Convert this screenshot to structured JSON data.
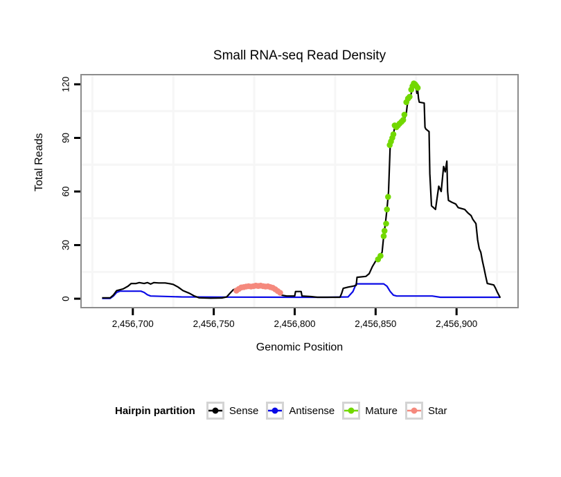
{
  "title": "Small RNA-seq Read Density",
  "legend": {
    "title": "Hairpin partition",
    "entries": [
      {
        "label": "Sense",
        "color": "#000000"
      },
      {
        "label": "Antisense",
        "color": "#0a0ae6"
      },
      {
        "label": "Mature",
        "color": "#72d800"
      },
      {
        "label": "Star",
        "color": "#f5897d"
      }
    ]
  },
  "chart_data": {
    "type": "line",
    "title": "Small RNA-seq Read Density",
    "xlabel": "Genomic Position",
    "ylabel": "Total Reads",
    "x_range": [
      2456668,
      2456938
    ],
    "y_range": [
      -5,
      125.4
    ],
    "x_ticks": [
      2456700,
      2456750,
      2456800,
      2456850,
      2456900
    ],
    "x_tick_labels": [
      "2,456,700",
      "2,456,750",
      "2,456,800",
      "2,456,850",
      "2,456,900"
    ],
    "y_ticks": [
      0,
      30,
      60,
      90,
      120
    ],
    "y_tick_labels": [
      "0",
      "30",
      "60",
      "90",
      "120"
    ],
    "x_minor": [
      2456675,
      2456725,
      2456775,
      2456825,
      2456875,
      2456925
    ],
    "y_minor": [
      15,
      45,
      75,
      105
    ],
    "grid_color": "#f6f6f6",
    "panel_border_color": "#8c8c8c",
    "legend_position": "bottom",
    "series": [
      {
        "name": "Antisense",
        "type": "line",
        "color": "#0a0ae6",
        "points": [
          [
            2456681,
            0.2
          ],
          [
            2456686,
            0.2
          ],
          [
            2456688,
            1.5
          ],
          [
            2456690,
            3.5
          ],
          [
            2456692,
            4.2
          ],
          [
            2456705,
            4.2
          ],
          [
            2456707,
            3.5
          ],
          [
            2456709,
            2.2
          ],
          [
            2456711,
            1.5
          ],
          [
            2456730,
            1
          ],
          [
            2456760,
            0.9
          ],
          [
            2456800,
            0.8
          ],
          [
            2456820,
            0.8
          ],
          [
            2456833,
            1
          ],
          [
            2456834,
            2
          ],
          [
            2456836,
            4
          ],
          [
            2456838,
            8.3
          ],
          [
            2456855,
            8.3
          ],
          [
            2456857,
            7
          ],
          [
            2456859,
            4
          ],
          [
            2456861,
            2
          ],
          [
            2456863,
            1.5
          ],
          [
            2456885,
            1.5
          ],
          [
            2456890,
            0.8
          ],
          [
            2456927,
            0.8
          ]
        ]
      },
      {
        "name": "Sense",
        "type": "line",
        "color": "#000000",
        "points": [
          [
            2456681,
            0.5
          ],
          [
            2456686,
            0.5
          ],
          [
            2456688,
            2
          ],
          [
            2456690,
            4.5
          ],
          [
            2456694,
            5.5
          ],
          [
            2456697,
            7
          ],
          [
            2456699,
            8.5
          ],
          [
            2456702,
            8.5
          ],
          [
            2456704,
            9
          ],
          [
            2456707,
            8.5
          ],
          [
            2456709,
            9
          ],
          [
            2456711,
            8.2
          ],
          [
            2456713,
            9
          ],
          [
            2456716,
            8.8
          ],
          [
            2456720,
            8.8
          ],
          [
            2456723,
            8.4
          ],
          [
            2456725,
            8
          ],
          [
            2456728,
            6.5
          ],
          [
            2456731,
            4.5
          ],
          [
            2456735,
            3
          ],
          [
            2456738,
            1.5
          ],
          [
            2456741,
            0.5
          ],
          [
            2456748,
            0.3
          ],
          [
            2456755,
            0.4
          ],
          [
            2456758,
            1
          ],
          [
            2456760,
            3
          ],
          [
            2456762,
            5
          ],
          [
            2456764,
            5.8
          ],
          [
            2456767,
            6.4
          ],
          [
            2456770,
            6.8
          ],
          [
            2456772,
            6.5
          ],
          [
            2456775,
            6.8
          ],
          [
            2456778,
            7
          ],
          [
            2456781,
            6.7
          ],
          [
            2456784,
            6.3
          ],
          [
            2456786,
            5.5
          ],
          [
            2456789,
            4
          ],
          [
            2456792,
            2
          ],
          [
            2456795,
            1.5
          ],
          [
            2456800,
            1.5
          ],
          [
            2456800.5,
            4
          ],
          [
            2456804,
            4
          ],
          [
            2456804.5,
            1.5
          ],
          [
            2456810,
            1.2
          ],
          [
            2456814,
            0.8
          ],
          [
            2456828,
            0.8
          ],
          [
            2456829,
            3
          ],
          [
            2456830,
            5.8
          ],
          [
            2456833,
            6.5
          ],
          [
            2456836,
            7
          ],
          [
            2456838,
            7.5
          ],
          [
            2456838.5,
            12
          ],
          [
            2456844,
            12.5
          ],
          [
            2456846,
            14
          ],
          [
            2456848,
            18
          ],
          [
            2456850,
            21
          ],
          [
            2456852,
            23
          ],
          [
            2456854,
            26
          ],
          [
            2456855,
            35
          ],
          [
            2456856,
            42
          ],
          [
            2456857,
            50
          ],
          [
            2456858,
            60
          ],
          [
            2456859,
            86
          ],
          [
            2456860,
            89
          ],
          [
            2456861,
            92
          ],
          [
            2456862,
            97
          ],
          [
            2456863,
            96
          ],
          [
            2456865,
            97
          ],
          [
            2456866,
            98
          ],
          [
            2456867,
            99
          ],
          [
            2456868,
            101
          ],
          [
            2456869,
            104
          ],
          [
            2456869.5,
            108
          ],
          [
            2456870,
            110
          ],
          [
            2456871,
            112
          ],
          [
            2456872,
            115
          ],
          [
            2456873,
            119
          ],
          [
            2456873.5,
            120.5
          ],
          [
            2456874.5,
            120
          ],
          [
            2456875,
            118
          ],
          [
            2456875.5,
            115
          ],
          [
            2456876,
            117
          ],
          [
            2456876.5,
            112
          ],
          [
            2456877,
            110
          ],
          [
            2456880,
            109.5
          ],
          [
            2456880.5,
            96
          ],
          [
            2456881,
            95
          ],
          [
            2456883,
            93.5
          ],
          [
            2456883.5,
            70
          ],
          [
            2456884.5,
            52
          ],
          [
            2456887,
            50
          ],
          [
            2456889,
            63
          ],
          [
            2456890.5,
            60
          ],
          [
            2456892,
            74
          ],
          [
            2456893,
            71
          ],
          [
            2456894,
            77
          ],
          [
            2456894.5,
            60
          ],
          [
            2456895,
            55
          ],
          [
            2456897,
            54
          ],
          [
            2456899.5,
            53
          ],
          [
            2456901,
            51
          ],
          [
            2456905,
            50
          ],
          [
            2456907,
            48
          ],
          [
            2456909,
            46.5
          ],
          [
            2456910,
            44.5
          ],
          [
            2456912,
            42
          ],
          [
            2456913,
            33
          ],
          [
            2456914,
            28
          ],
          [
            2456915,
            26
          ],
          [
            2456916,
            21
          ],
          [
            2456917,
            17
          ],
          [
            2456918,
            12.5
          ],
          [
            2456919,
            8.5
          ],
          [
            2456923,
            7.7
          ],
          [
            2456924,
            6
          ],
          [
            2456925,
            4
          ],
          [
            2456927,
            0.5
          ]
        ]
      },
      {
        "name": "Star",
        "type": "points",
        "color": "#f5897d",
        "points": [
          [
            2456764,
            4.5
          ],
          [
            2456765.5,
            5.5
          ],
          [
            2456767,
            6.3
          ],
          [
            2456768.5,
            6.5
          ],
          [
            2456770,
            6.8
          ],
          [
            2456771.5,
            7
          ],
          [
            2456773,
            6.8
          ],
          [
            2456774.5,
            7
          ],
          [
            2456776,
            7.3
          ],
          [
            2456777.5,
            7.1
          ],
          [
            2456779,
            7.3
          ],
          [
            2456780.5,
            7
          ],
          [
            2456782,
            6.8
          ],
          [
            2456783.5,
            6.9
          ],
          [
            2456785,
            6.5
          ],
          [
            2456786.5,
            6.1
          ],
          [
            2456788,
            5.3
          ],
          [
            2456789.5,
            4.3
          ],
          [
            2456791,
            3.3
          ]
        ]
      },
      {
        "name": "Mature",
        "type": "points",
        "color": "#72d800",
        "points": [
          [
            2456851.5,
            22
          ],
          [
            2456853,
            24
          ],
          [
            2456855,
            35
          ],
          [
            2456855.5,
            38
          ],
          [
            2456856.5,
            42
          ],
          [
            2456857,
            50
          ],
          [
            2456857.7,
            57
          ],
          [
            2456858.7,
            86
          ],
          [
            2456859.5,
            88
          ],
          [
            2456860.3,
            90
          ],
          [
            2456861,
            92
          ],
          [
            2456861.8,
            97
          ],
          [
            2456862.8,
            96
          ],
          [
            2456863.8,
            97
          ],
          [
            2456864.8,
            98
          ],
          [
            2456866,
            99
          ],
          [
            2456867,
            100
          ],
          [
            2456867.8,
            103
          ],
          [
            2456869,
            110
          ],
          [
            2456870,
            112
          ],
          [
            2456871,
            113
          ],
          [
            2456872,
            117
          ],
          [
            2456872.8,
            119
          ],
          [
            2456873.6,
            120.5
          ],
          [
            2456874.4,
            120
          ],
          [
            2456875.2,
            119
          ],
          [
            2456876,
            118
          ]
        ]
      }
    ]
  }
}
